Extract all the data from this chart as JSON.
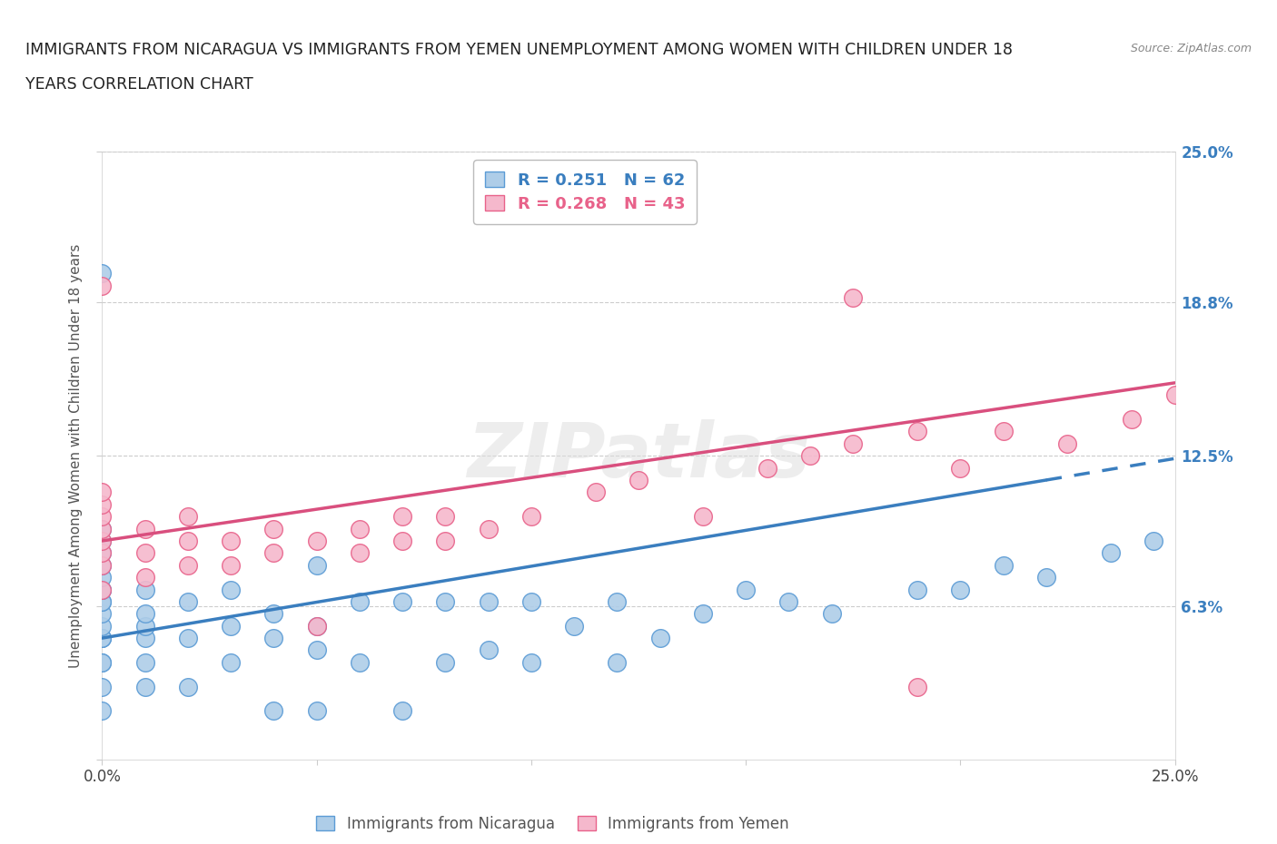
{
  "title_line1": "IMMIGRANTS FROM NICARAGUA VS IMMIGRANTS FROM YEMEN UNEMPLOYMENT AMONG WOMEN WITH CHILDREN UNDER 18",
  "title_line2": "YEARS CORRELATION CHART",
  "source": "Source: ZipAtlas.com",
  "ylabel": "Unemployment Among Women with Children Under 18 years",
  "xlim": [
    0.0,
    0.25
  ],
  "ylim": [
    0.0,
    0.25
  ],
  "right_ytick_values": [
    0.0,
    0.063,
    0.125,
    0.188,
    0.25
  ],
  "right_ytick_labels": [
    "",
    "6.3%",
    "12.5%",
    "18.8%",
    "25.0%"
  ],
  "nicaragua_color_edge": "#5b9bd5",
  "nicaragua_color_fill": "#aecde8",
  "yemen_color_edge": "#e8628a",
  "yemen_color_fill": "#f5b8cc",
  "nicaragua_R": 0.251,
  "nicaragua_N": 62,
  "yemen_R": 0.268,
  "yemen_N": 43,
  "nicaragua_line_color": "#3a7ebf",
  "yemen_line_color": "#d94f7e",
  "legend_label_nicaragua": "Immigrants from Nicaragua",
  "legend_label_yemen": "Immigrants from Yemen",
  "nicaragua_x": [
    0.0,
    0.0,
    0.0,
    0.0,
    0.0,
    0.0,
    0.0,
    0.0,
    0.0,
    0.0,
    0.0,
    0.0,
    0.0,
    0.0,
    0.0,
    0.0,
    0.0,
    0.0,
    0.0,
    0.01,
    0.01,
    0.01,
    0.01,
    0.01,
    0.01,
    0.02,
    0.02,
    0.02,
    0.03,
    0.03,
    0.03,
    0.04,
    0.04,
    0.04,
    0.05,
    0.05,
    0.05,
    0.05,
    0.06,
    0.06,
    0.07,
    0.07,
    0.08,
    0.08,
    0.09,
    0.09,
    0.1,
    0.1,
    0.11,
    0.12,
    0.12,
    0.13,
    0.14,
    0.15,
    0.16,
    0.17,
    0.19,
    0.2,
    0.21,
    0.22,
    0.235,
    0.245
  ],
  "nicaragua_y": [
    0.02,
    0.03,
    0.04,
    0.04,
    0.05,
    0.05,
    0.05,
    0.055,
    0.06,
    0.065,
    0.065,
    0.07,
    0.07,
    0.075,
    0.08,
    0.085,
    0.09,
    0.095,
    0.2,
    0.03,
    0.04,
    0.05,
    0.055,
    0.06,
    0.07,
    0.03,
    0.05,
    0.065,
    0.04,
    0.055,
    0.07,
    0.02,
    0.05,
    0.06,
    0.02,
    0.045,
    0.055,
    0.08,
    0.04,
    0.065,
    0.02,
    0.065,
    0.04,
    0.065,
    0.045,
    0.065,
    0.04,
    0.065,
    0.055,
    0.04,
    0.065,
    0.05,
    0.06,
    0.07,
    0.065,
    0.06,
    0.07,
    0.07,
    0.08,
    0.075,
    0.085,
    0.09
  ],
  "yemen_x": [
    0.0,
    0.0,
    0.0,
    0.0,
    0.0,
    0.0,
    0.0,
    0.0,
    0.0,
    0.01,
    0.01,
    0.01,
    0.02,
    0.02,
    0.02,
    0.03,
    0.03,
    0.04,
    0.04,
    0.05,
    0.05,
    0.06,
    0.06,
    0.07,
    0.07,
    0.08,
    0.08,
    0.09,
    0.1,
    0.115,
    0.125,
    0.14,
    0.155,
    0.165,
    0.175,
    0.19,
    0.2,
    0.21,
    0.225,
    0.24,
    0.25,
    0.175,
    0.19
  ],
  "yemen_y": [
    0.07,
    0.08,
    0.085,
    0.09,
    0.095,
    0.1,
    0.105,
    0.11,
    0.195,
    0.075,
    0.085,
    0.095,
    0.08,
    0.09,
    0.1,
    0.08,
    0.09,
    0.085,
    0.095,
    0.055,
    0.09,
    0.085,
    0.095,
    0.09,
    0.1,
    0.09,
    0.1,
    0.095,
    0.1,
    0.11,
    0.115,
    0.1,
    0.12,
    0.125,
    0.13,
    0.135,
    0.12,
    0.135,
    0.13,
    0.14,
    0.15,
    0.19,
    0.03
  ],
  "background_color": "#ffffff",
  "grid_color": "#cccccc",
  "nic_line_x0": 0.0,
  "nic_line_y0": 0.05,
  "nic_line_x1": 0.22,
  "nic_line_y1": 0.115,
  "yem_line_x0": 0.0,
  "yem_line_y0": 0.09,
  "yem_line_x1": 0.25,
  "yem_line_y1": 0.155
}
